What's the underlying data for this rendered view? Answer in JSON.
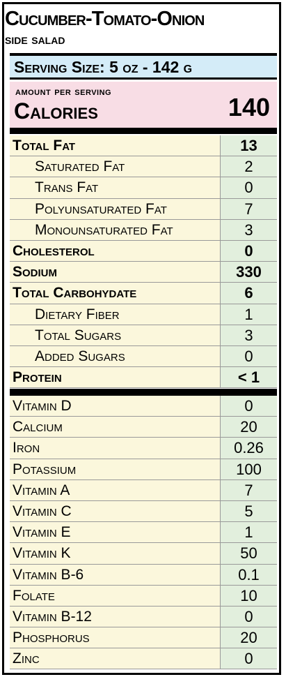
{
  "title": "Cucumber-Tomato-Onion",
  "subtitle": "side salad",
  "serving": "Serving Size:  5 oz  -  142 g",
  "calories": {
    "amount_label": "amount per serving",
    "label": "Calories",
    "value": "140"
  },
  "macros": [
    {
      "name": "Total Fat",
      "value": "13",
      "bold": true,
      "sub": false
    },
    {
      "name": "Saturated Fat",
      "value": "2",
      "bold": false,
      "sub": true
    },
    {
      "name": "Trans Fat",
      "value": "0",
      "bold": false,
      "sub": true
    },
    {
      "name": "Polyunsaturated Fat",
      "value": "7",
      "bold": false,
      "sub": true
    },
    {
      "name": "Monounsaturated Fat",
      "value": "3",
      "bold": false,
      "sub": true
    },
    {
      "name": "Cholesterol",
      "value": "0",
      "bold": true,
      "sub": false
    },
    {
      "name": "Sodium",
      "value": "330",
      "bold": true,
      "sub": false
    },
    {
      "name": "Total Carbohydate",
      "value": "6",
      "bold": true,
      "sub": false
    },
    {
      "name": "Dietary Fiber",
      "value": "1",
      "bold": false,
      "sub": true
    },
    {
      "name": "Total Sugars",
      "value": "3",
      "bold": false,
      "sub": true
    },
    {
      "name": "Added Sugars",
      "value": "0",
      "bold": false,
      "sub": true
    },
    {
      "name": "Protein",
      "value": "< 1",
      "bold": true,
      "sub": false
    }
  ],
  "micros": [
    {
      "name": "Vitamin D",
      "value": "0"
    },
    {
      "name": "Calcium",
      "value": "20"
    },
    {
      "name": "Iron",
      "value": "0.26"
    },
    {
      "name": "Potassium",
      "value": "100"
    },
    {
      "name": "Vitamin A",
      "value": "7"
    },
    {
      "name": "Vitamin C",
      "value": "5"
    },
    {
      "name": "Vitamin E",
      "value": "1"
    },
    {
      "name": "Vitamin K",
      "value": "50"
    },
    {
      "name": "Vitamin B-6",
      "value": "0.1"
    },
    {
      "name": "Folate",
      "value": "10"
    },
    {
      "name": "Vitamin B-12",
      "value": "0"
    },
    {
      "name": "Phosphorus",
      "value": "20"
    },
    {
      "name": "Zinc",
      "value": "0"
    }
  ]
}
